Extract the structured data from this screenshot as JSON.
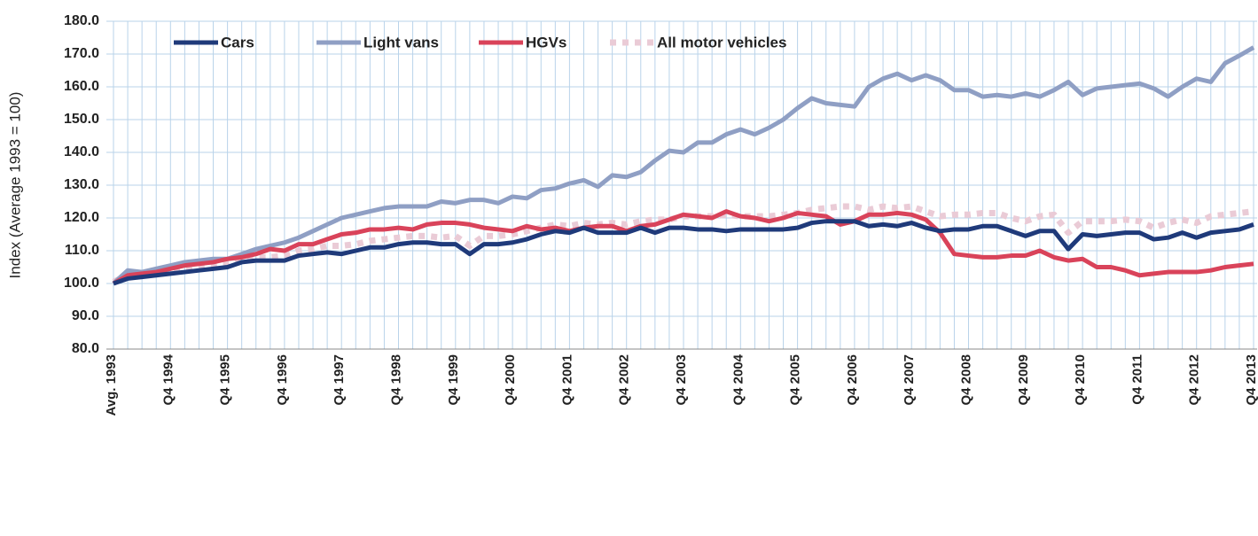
{
  "chart_data": {
    "type": "line",
    "y_label": "Index (Average 1993 = 100)",
    "categories": [
      "Avg. 1993",
      null,
      null,
      null,
      "Q4 1994",
      null,
      null,
      null,
      "Q4 1995",
      null,
      null,
      null,
      "Q4 1996",
      null,
      null,
      null,
      "Q4 1997",
      null,
      null,
      null,
      "Q4 1998",
      null,
      null,
      null,
      "Q4 1999",
      null,
      null,
      null,
      "Q4 2000",
      null,
      null,
      null,
      "Q4 2001",
      null,
      null,
      null,
      "Q4 2002",
      null,
      null,
      null,
      "Q4 2003",
      null,
      null,
      null,
      "Q4 2004",
      null,
      null,
      null,
      "Q4 2005",
      null,
      null,
      null,
      "Q4 2006",
      null,
      null,
      null,
      "Q4 2007",
      null,
      null,
      null,
      "Q4 2008",
      null,
      null,
      null,
      "Q4 2009",
      null,
      null,
      null,
      "Q4 2010",
      null,
      null,
      null,
      "Q4 2011",
      null,
      null,
      null,
      "Q4 2012",
      null,
      null,
      null,
      "Q4 2013"
    ],
    "series": [
      {
        "name": "Cars",
        "color": "#1f3a7a",
        "style": "solid",
        "values": [
          100,
          101.5,
          102,
          102.5,
          103,
          103.5,
          104,
          104.5,
          105,
          106.5,
          107,
          107,
          107,
          108.5,
          109,
          109.5,
          109,
          110,
          111,
          111,
          112,
          112.5,
          112.5,
          112,
          112,
          109,
          112,
          112,
          112.5,
          113.5,
          115,
          116,
          115.5,
          117,
          115.5,
          115.5,
          115.5,
          117,
          115.5,
          117,
          117,
          116.5,
          116.5,
          116,
          116.5,
          116.5,
          116.5,
          116.5,
          117,
          118.5,
          119,
          119,
          119,
          117.5,
          118,
          117.5,
          118.5,
          117,
          116,
          116.5,
          116.5,
          117.5,
          117.5,
          116,
          114.5,
          116,
          116,
          110.5,
          115,
          114.5,
          115,
          115.5,
          115.5,
          113.5,
          114,
          115.5,
          114,
          115.5,
          116,
          116.5,
          118
        ]
      },
      {
        "name": "Light vans",
        "color": "#8f9fc4",
        "style": "solid",
        "values": [
          100,
          104,
          103.5,
          104.5,
          105.5,
          106.5,
          107,
          107.5,
          107.5,
          109,
          110.5,
          111.5,
          112.5,
          114,
          116,
          118,
          120,
          121,
          122,
          123,
          123.5,
          123.5,
          123.5,
          125,
          124.5,
          125.5,
          125.5,
          124.5,
          126.5,
          126,
          128.5,
          129,
          130.5,
          131.5,
          129.5,
          133,
          132.5,
          134,
          137.5,
          140.5,
          140,
          143,
          143,
          145.5,
          147,
          145.5,
          147.5,
          150,
          153.5,
          156.5,
          155,
          154.5,
          154,
          160,
          162.5,
          164,
          162,
          163.5,
          162,
          159,
          159,
          157,
          157.5,
          157,
          158,
          157,
          159,
          161.5,
          157.5,
          159.5,
          160,
          160.5,
          161,
          159.5,
          157,
          160,
          162.5,
          161.5,
          167.2,
          169.5,
          172
        ]
      },
      {
        "name": "HGVs",
        "color": "#d9435a",
        "style": "solid",
        "values": [
          100,
          102.5,
          103,
          103.5,
          104.5,
          105.5,
          106,
          106.5,
          107.5,
          108,
          109,
          110.5,
          110,
          112,
          112,
          113.5,
          115,
          115.5,
          116.5,
          116.5,
          117,
          116.5,
          118,
          118.5,
          118.5,
          118,
          117,
          116.5,
          116,
          117.5,
          116.5,
          117,
          116,
          117,
          117.5,
          117.5,
          116,
          117.5,
          118,
          119.5,
          121,
          120.5,
          120,
          122,
          120.5,
          120,
          119,
          120,
          121.5,
          121,
          120.5,
          118,
          119,
          121,
          121,
          121.5,
          121,
          119.5,
          115.5,
          109,
          108.5,
          108,
          108,
          108.5,
          108.5,
          110,
          108,
          107,
          107.5,
          105,
          105,
          104,
          102.5,
          103,
          103.5,
          103.5,
          103.5,
          104,
          105,
          105.5,
          106
        ]
      },
      {
        "name": "All motor vehicles",
        "color": "#eacbd6",
        "style": "dotted",
        "values": [
          100.5,
          102.5,
          103,
          103.5,
          104,
          104.5,
          105,
          105.5,
          106,
          107.5,
          108,
          108,
          108.5,
          110,
          110.5,
          111.5,
          111.5,
          112,
          113,
          113.5,
          114,
          114.5,
          114.5,
          114,
          114.5,
          111.5,
          114.5,
          114.5,
          115,
          116,
          117,
          118,
          117.5,
          118.5,
          118,
          118.5,
          118,
          119,
          119.5,
          119.5,
          120.5,
          120.5,
          120.5,
          121,
          120.5,
          120.5,
          120.5,
          121,
          121.5,
          122.5,
          123,
          123.5,
          123.5,
          122.5,
          123.5,
          123,
          123.5,
          122,
          120.5,
          121,
          121,
          121.5,
          121.5,
          120,
          119,
          120.5,
          121,
          115.5,
          119,
          119,
          119,
          119.5,
          119,
          117,
          118.5,
          119.5,
          118.5,
          120.5,
          121,
          121.5,
          122
        ]
      }
    ],
    "ylim": [
      80,
      180
    ],
    "yticks": [
      {
        "value": 80,
        "label": "80.0"
      },
      {
        "value": 90,
        "label": "90.0"
      },
      {
        "value": 100,
        "label": "100.0"
      },
      {
        "value": 110,
        "label": "110.0"
      },
      {
        "value": 120,
        "label": "120.0"
      },
      {
        "value": 130,
        "label": "130.0"
      },
      {
        "value": 140,
        "label": "140.0"
      },
      {
        "value": 150,
        "label": "150.0"
      },
      {
        "value": 160,
        "label": "160.0"
      },
      {
        "value": 170,
        "label": "170.0"
      },
      {
        "value": 180,
        "label": "180.0"
      }
    ],
    "grid": true,
    "legend": "top"
  }
}
